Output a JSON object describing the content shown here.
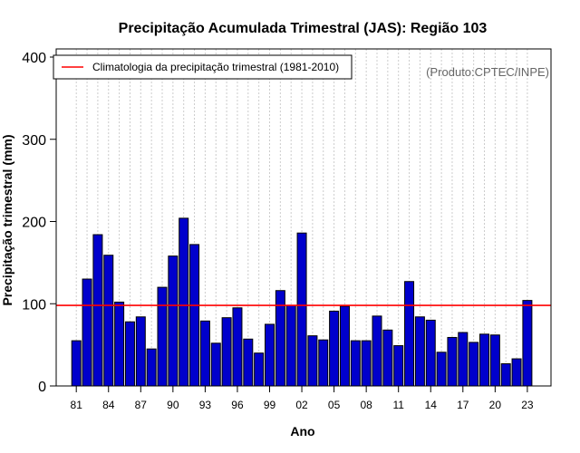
{
  "chart_data": {
    "type": "bar",
    "title": "Precipitação Acumulada Trimestral (JAS): Região 103",
    "xlabel": "Ano",
    "ylabel": "Precipitação trimestral (mm)",
    "ylim": [
      0,
      400
    ],
    "yticks": [
      0,
      100,
      200,
      300,
      400
    ],
    "xticks": [
      "81",
      "84",
      "87",
      "90",
      "93",
      "96",
      "99",
      "02",
      "05",
      "08",
      "11",
      "14",
      "17",
      "20",
      "23"
    ],
    "categories": [
      "1981",
      "1982",
      "1983",
      "1984",
      "1985",
      "1986",
      "1987",
      "1988",
      "1989",
      "1990",
      "1991",
      "1992",
      "1993",
      "1994",
      "1995",
      "1996",
      "1997",
      "1998",
      "1999",
      "2000",
      "2001",
      "2002",
      "2003",
      "2004",
      "2005",
      "2006",
      "2007",
      "2008",
      "2009",
      "2010",
      "2011",
      "2012",
      "2013",
      "2014",
      "2015",
      "2016",
      "2017",
      "2018",
      "2019",
      "2020",
      "2021",
      "2022",
      "2023"
    ],
    "values": [
      55,
      130,
      184,
      159,
      102,
      78,
      84,
      45,
      120,
      158,
      204,
      172,
      79,
      52,
      83,
      95,
      57,
      40,
      75,
      116,
      98,
      186,
      61,
      56,
      91,
      97,
      55,
      55,
      85,
      68,
      49,
      127,
      84,
      80,
      41,
      59,
      65,
      53,
      63,
      62,
      27,
      33,
      104
    ],
    "bar_color": "#0000cc",
    "climatology": {
      "label": "Climatologia da precipitação trimestral (1981-2010)",
      "value": 98,
      "color": "#ff0000"
    },
    "grid": "vertical-dotted",
    "legend_position": "top-left",
    "credit": "(Produto:CPTEC/INPE)"
  }
}
